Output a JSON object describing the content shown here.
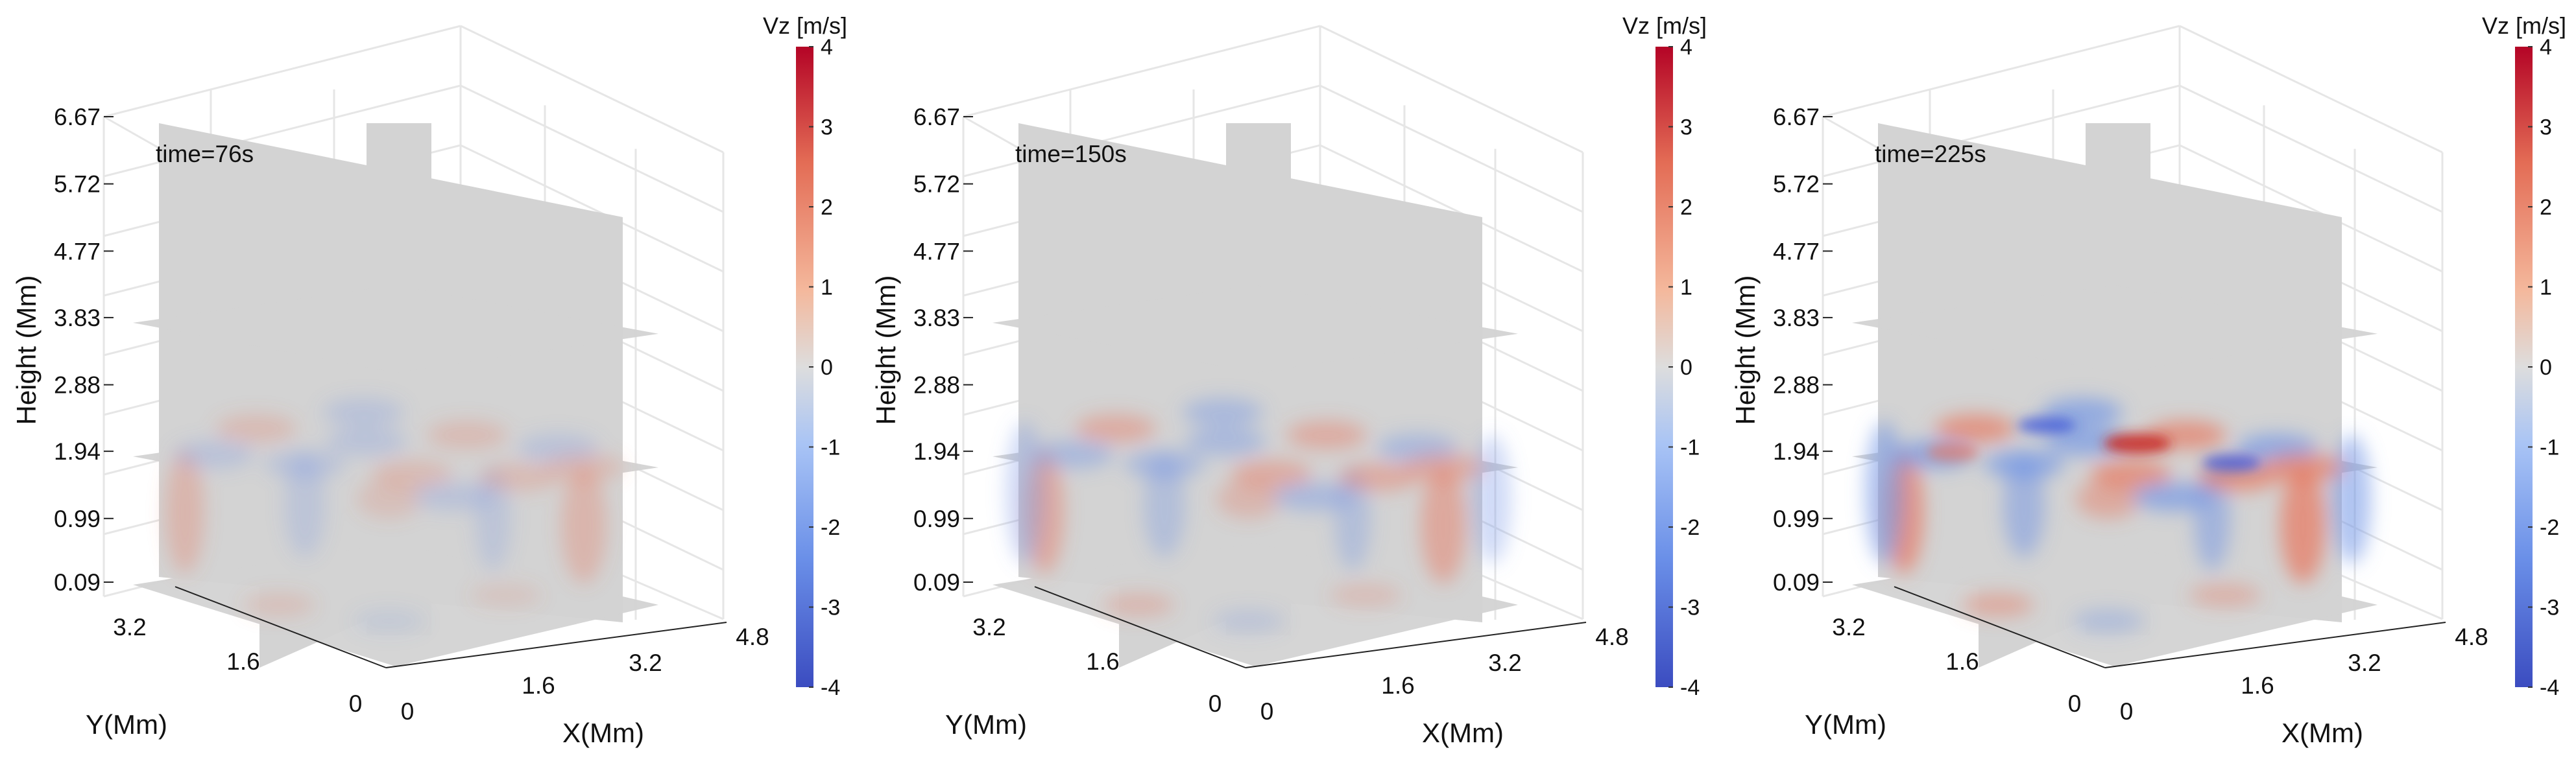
{
  "chart_data": [
    {
      "type": "heatmap",
      "subtype": "3d-slice",
      "annotation": "time=76s",
      "xlabel": "X(Mm)",
      "ylabel": "Y(Mm)",
      "zlabel": "Height (Mm)",
      "x_ticks": [
        "0",
        "1.6",
        "3.2",
        "4.8"
      ],
      "y_ticks": [
        "0",
        "1.6",
        "3.2"
      ],
      "z_ticks": [
        "0.09",
        "0.99",
        "1.94",
        "2.88",
        "3.83",
        "4.77",
        "5.72",
        "6.67"
      ],
      "colorbar_label": "Vz [m/s]",
      "colorbar_ticks": [
        "4",
        "3",
        "2",
        "1",
        "0",
        "-1",
        "-2",
        "-3",
        "-4"
      ],
      "clim": [
        -4,
        4
      ],
      "slice_heights": [
        0.09,
        1.94,
        3.83
      ],
      "amplitude": 0.35
    },
    {
      "type": "heatmap",
      "subtype": "3d-slice",
      "annotation": "time=150s",
      "xlabel": "X(Mm)",
      "ylabel": "Y(Mm)",
      "zlabel": "Height (Mm)",
      "x_ticks": [
        "0",
        "1.6",
        "3.2",
        "4.8"
      ],
      "y_ticks": [
        "0",
        "1.6",
        "3.2"
      ],
      "z_ticks": [
        "0.09",
        "0.99",
        "1.94",
        "2.88",
        "3.83",
        "4.77",
        "5.72",
        "6.67"
      ],
      "colorbar_label": "Vz [m/s]",
      "colorbar_ticks": [
        "4",
        "3",
        "2",
        "1",
        "0",
        "-1",
        "-2",
        "-3",
        "-4"
      ],
      "clim": [
        -4,
        4
      ],
      "slice_heights": [
        0.09,
        1.94,
        3.83
      ],
      "amplitude": 0.6
    },
    {
      "type": "heatmap",
      "subtype": "3d-slice",
      "annotation": "time=225s",
      "xlabel": "X(Mm)",
      "ylabel": "Y(Mm)",
      "zlabel": "Height (Mm)",
      "x_ticks": [
        "0",
        "1.6",
        "3.2",
        "4.8"
      ],
      "y_ticks": [
        "0",
        "1.6",
        "3.2"
      ],
      "z_ticks": [
        "0.09",
        "0.99",
        "1.94",
        "2.88",
        "3.83",
        "4.77",
        "5.72",
        "6.67"
      ],
      "colorbar_label": "Vz [m/s]",
      "colorbar_ticks": [
        "4",
        "3",
        "2",
        "1",
        "0",
        "-1",
        "-2",
        "-3",
        "-4"
      ],
      "clim": [
        -4,
        4
      ],
      "slice_heights": [
        0.09,
        1.94,
        3.83
      ],
      "amplitude": 1.0
    }
  ],
  "colors": {
    "slice_gray": "#d3d3d3",
    "box_line": "#e6e6e6",
    "axis": "#222222",
    "warm": "#e8735a",
    "cool": "#6f93e6",
    "strong_red": "#c8241f",
    "strong_blue": "#3550d8",
    "colorbar_stops": [
      "#b40426",
      "#e36c55",
      "#f4b89c",
      "#dddddd",
      "#a9c4f5",
      "#6a8fe8",
      "#3b4cc0"
    ]
  }
}
